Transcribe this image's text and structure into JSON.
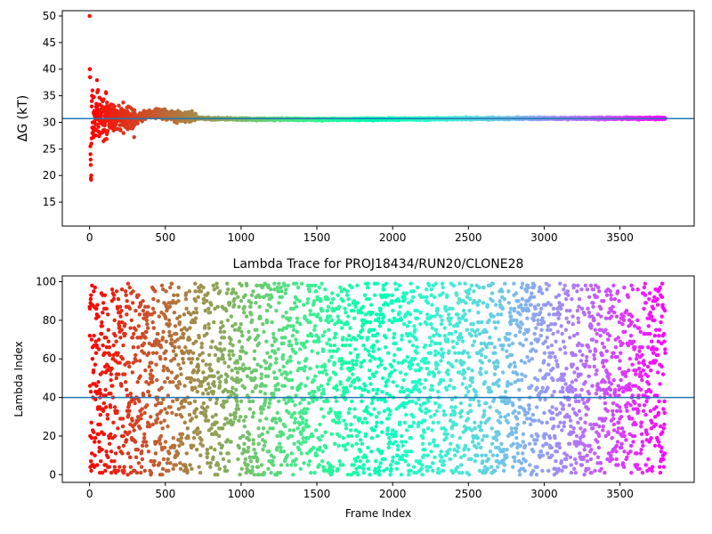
{
  "chart_data": [
    {
      "type": "scatter",
      "title": "",
      "xlabel": "",
      "ylabel": "ΔG (kT)",
      "xlim": [
        -180,
        3990
      ],
      "ylim": [
        10.5,
        51
      ],
      "x_ticks": [
        0,
        500,
        1000,
        1500,
        2000,
        2500,
        3000,
        3500
      ],
      "y_ticks": [
        15,
        20,
        25,
        30,
        35,
        40,
        45,
        50
      ],
      "hline": 30.7,
      "hline_color": "#1f77b4",
      "colormap": "rainbow",
      "n_frames": 3800,
      "grid": false,
      "series_description_points": [
        [
          0,
          50
        ],
        [
          0,
          40
        ],
        [
          10,
          38.5
        ],
        [
          20,
          19.2
        ],
        [
          30,
          33
        ],
        [
          40,
          25.5
        ],
        [
          60,
          28
        ],
        [
          80,
          33.5
        ],
        [
          100,
          31
        ],
        [
          150,
          32.5
        ],
        [
          200,
          30
        ],
        [
          250,
          29
        ],
        [
          300,
          30.5
        ],
        [
          400,
          31.8
        ],
        [
          600,
          31
        ],
        [
          800,
          30.7
        ],
        [
          1000,
          30.6
        ],
        [
          1500,
          30.55
        ],
        [
          2000,
          30.6
        ],
        [
          2500,
          30.7
        ],
        [
          3000,
          30.75
        ],
        [
          3500,
          30.75
        ],
        [
          3800,
          30.75
        ]
      ]
    },
    {
      "type": "scatter",
      "title": "Lambda Trace for PROJ18434/RUN20/CLONE28",
      "xlabel": "Frame Index",
      "ylabel": "Lambda Index",
      "xlim": [
        -180,
        3990
      ],
      "ylim": [
        -4,
        103
      ],
      "x_ticks": [
        0,
        500,
        1000,
        1500,
        2000,
        2500,
        3000,
        3500
      ],
      "y_ticks": [
        0,
        20,
        40,
        60,
        80,
        100
      ],
      "hline": 40,
      "hline_color": "#1f77b4",
      "colormap": "rainbow",
      "n_frames": 3800,
      "lambda_range": [
        0,
        99
      ],
      "grid": false
    }
  ],
  "colors": {
    "accent_line": "#1f77b4",
    "rainbow_start": "#ff0000",
    "rainbow_end": "#8000ff"
  }
}
